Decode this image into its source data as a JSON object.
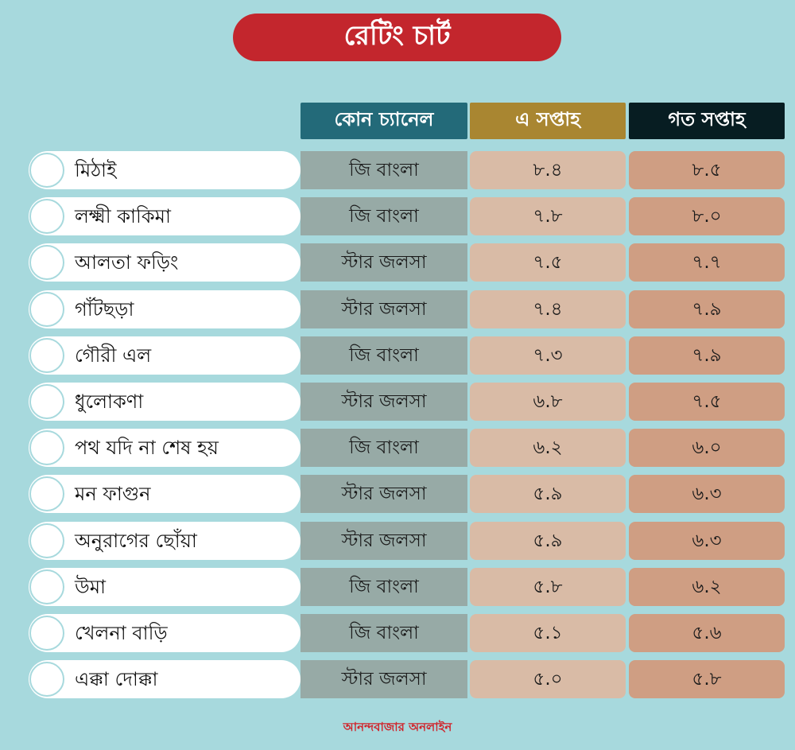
{
  "title": "রেটিং চার্ট",
  "colors": {
    "background": "#a7d9dd",
    "title_bg": "#c3262d",
    "channel_header": "#236a79",
    "this_week_header": "#a98631",
    "last_week_header": "#071d22",
    "channel_cell": "#97aaa6",
    "this_week_cell": "#d9bba6",
    "last_week_cell": "#cf9e83"
  },
  "headers": {
    "channel": "কোন চ্যানেল",
    "this_week": "এ সপ্তাহ",
    "last_week": "গত সপ্তাহ"
  },
  "footer": "আনন্দবাজার অনলাইন",
  "chart_data": {
    "type": "table",
    "title": "রেটিং চার্ট",
    "columns": [
      "কোন চ্যানেল",
      "এ সপ্তাহ",
      "গত সপ্তাহ"
    ],
    "rows": [
      {
        "name": "মিঠাই",
        "channel": "জি বাংলা",
        "this_week": "৮.৪",
        "last_week": "৮.৫"
      },
      {
        "name": "লক্ষ্মী কাকিমা",
        "channel": "জি বাংলা",
        "this_week": "৭.৮",
        "last_week": "৮.০"
      },
      {
        "name": "আলতা ফড়িং",
        "channel": "স্টার জলসা",
        "this_week": "৭.৫",
        "last_week": "৭.৭"
      },
      {
        "name": "গাঁটছড়া",
        "channel": "স্টার জলসা",
        "this_week": "৭.৪",
        "last_week": "৭.৯"
      },
      {
        "name": "গৌরী এল",
        "channel": "জি বাংলা",
        "this_week": "৭.৩",
        "last_week": "৭.৯"
      },
      {
        "name": "ধুলোকণা",
        "channel": "স্টার জলসা",
        "this_week": "৬.৮",
        "last_week": "৭.৫"
      },
      {
        "name": "পথ যদি না শেষ হয়",
        "channel": "জি বাংলা",
        "this_week": "৬.২",
        "last_week": "৬.০"
      },
      {
        "name": "মন ফাগুন",
        "channel": "স্টার জলসা",
        "this_week": "৫.৯",
        "last_week": "৬.৩"
      },
      {
        "name": "অনুরাগের ছোঁয়া",
        "channel": "স্টার জলসা",
        "this_week": "৫.৯",
        "last_week": "৬.৩"
      },
      {
        "name": "উমা",
        "channel": "জি বাংলা",
        "this_week": "৫.৮",
        "last_week": "৬.২"
      },
      {
        "name": "খেলনা বাড়ি",
        "channel": "জি বাংলা",
        "this_week": "৫.১",
        "last_week": "৫.৬"
      },
      {
        "name": "এক্কা দোক্কা",
        "channel": "স্টার জলসা",
        "this_week": "৫.০",
        "last_week": "৫.৮"
      }
    ]
  }
}
